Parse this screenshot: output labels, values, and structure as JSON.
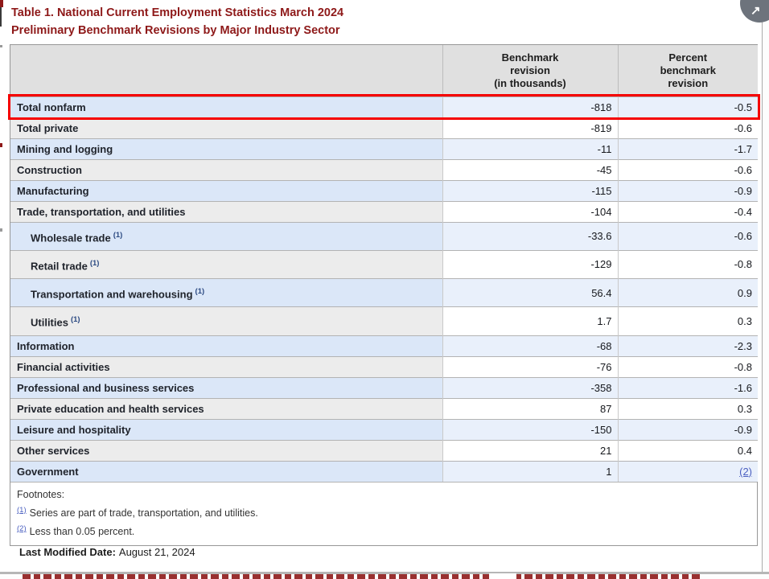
{
  "page": {
    "title_line1": "Table 1. National Current Employment Statistics March 2024",
    "title_line2": "Preliminary Benchmark Revisions by Major Industry Sector",
    "expand_icon": "↗"
  },
  "table": {
    "header": {
      "col_benchmark_lines": [
        "Benchmark",
        "revision",
        "(in thousands)"
      ],
      "col_percent_lines": [
        "Percent",
        "benchmark",
        "revision"
      ]
    },
    "rows": [
      {
        "label": "Total nonfarm",
        "benchmark": "-818",
        "percent": "-0.5",
        "highlight": true
      },
      {
        "label": "Total private",
        "benchmark": "-819",
        "percent": "-0.6"
      },
      {
        "label": "Mining and logging",
        "benchmark": "-11",
        "percent": "-1.7"
      },
      {
        "label": "Construction",
        "benchmark": "-45",
        "percent": "-0.6"
      },
      {
        "label": "Manufacturing",
        "benchmark": "-115",
        "percent": "-0.9"
      },
      {
        "label": "Trade, transportation, and utilities",
        "benchmark": "-104",
        "percent": "-0.4"
      },
      {
        "label": "Wholesale trade",
        "footnote": "(1)",
        "indent": true,
        "benchmark": "-33.6",
        "percent": "-0.6"
      },
      {
        "label": "Retail trade",
        "footnote": "(1)",
        "indent": true,
        "benchmark": "-129",
        "percent": "-0.8"
      },
      {
        "label": "Transportation and warehousing",
        "footnote": "(1)",
        "indent": true,
        "benchmark": "56.4",
        "percent": "0.9"
      },
      {
        "label": "Utilities",
        "footnote": "(1)",
        "indent": true,
        "benchmark": "1.7",
        "percent": "0.3"
      },
      {
        "label": "Information",
        "benchmark": "-68",
        "percent": "-2.3"
      },
      {
        "label": "Financial activities",
        "benchmark": "-76",
        "percent": "-0.8"
      },
      {
        "label": "Professional and business services",
        "benchmark": "-358",
        "percent": "-1.6"
      },
      {
        "label": "Private education and health services",
        "benchmark": "87",
        "percent": "0.3"
      },
      {
        "label": "Leisure and hospitality",
        "benchmark": "-150",
        "percent": "-0.9"
      },
      {
        "label": "Other services",
        "benchmark": "21",
        "percent": "0.4"
      },
      {
        "label": "Government",
        "benchmark": "1",
        "percent": "(2)",
        "percent_is_link": true
      }
    ],
    "footnotes": {
      "label": "Footnotes:",
      "items": [
        {
          "marker": "(1)",
          "text": "Series are part of trade, transportation, and utilities."
        },
        {
          "marker": "(2)",
          "text": "Less than 0.05 percent."
        }
      ]
    }
  },
  "footer": {
    "last_modified_label": "Last Modified Date:",
    "last_modified_value": "August 21, 2024"
  },
  "colors": {
    "title_maroon": "#8e1919",
    "highlight_red": "#f50000",
    "row_blue_label": "#dbe7f8",
    "row_blue_value": "#e9f0fb",
    "row_gray_label": "#ececec",
    "header_gray": "#e0e0e0",
    "link_blue": "#4a5fc0"
  }
}
